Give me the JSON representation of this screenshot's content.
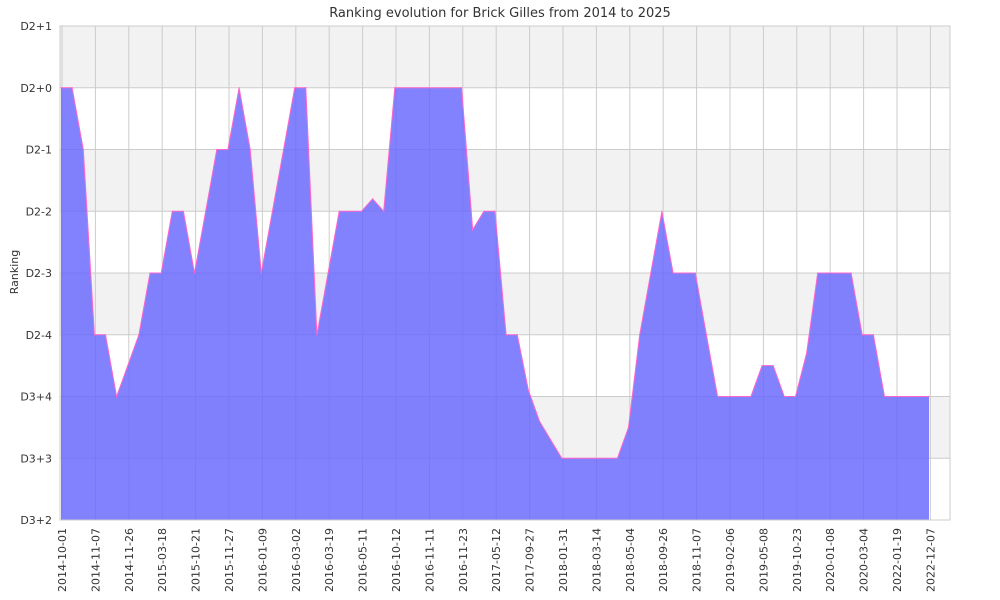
{
  "chart_data": {
    "type": "area",
    "title": "Ranking evolution for Brick Gilles from 2014 to 2025",
    "xlabel": "",
    "ylabel": "Ranking",
    "y_ticks": [
      "D3+2",
      "D3+3",
      "D3+4",
      "D2-4",
      "D2-3",
      "D2-2",
      "D2-1",
      "D2+0",
      "D2+1"
    ],
    "x_tick_labels": [
      "2014-10-01",
      "2014-11-07",
      "2014-11-26",
      "2015-03-18",
      "2015-10-21",
      "2015-11-27",
      "2016-01-09",
      "2016-03-02",
      "2016-03-19",
      "2016-05-11",
      "2016-10-12",
      "2016-11-11",
      "2016-11-23",
      "2017-05-12",
      "2017-09-27",
      "2018-01-31",
      "2018-03-14",
      "2018-05-04",
      "2018-09-26",
      "2018-11-07",
      "2019-02-06",
      "2019-05-08",
      "2019-10-23",
      "2020-01-08",
      "2020-03-04",
      "2022-01-19",
      "2022-12-07"
    ],
    "ylim": [
      0,
      8
    ],
    "grid": true,
    "colors": {
      "fill": "#6666ff",
      "line": "#ff66cc",
      "band": "#f2f2f2",
      "grid": "#cccccc"
    },
    "series": [
      {
        "values": [
          7,
          7,
          6,
          3,
          3,
          2,
          2.5,
          3,
          4,
          4,
          5,
          5,
          4,
          5,
          6,
          6,
          7,
          6,
          4,
          5,
          6,
          7,
          7,
          3,
          4,
          5,
          5,
          5,
          5.2,
          5,
          7,
          7,
          7,
          7,
          7,
          7,
          7,
          4.7,
          5,
          5,
          3,
          3,
          2.1,
          1.6,
          1.3,
          1,
          1,
          1,
          1,
          1,
          1,
          1.5,
          3,
          4,
          5,
          4,
          4,
          4,
          3,
          2,
          2,
          2,
          2,
          2.5,
          2.5,
          2,
          2,
          2.7,
          4,
          4,
          4,
          4,
          3,
          3,
          2,
          2,
          2,
          2,
          2
        ]
      }
    ]
  }
}
